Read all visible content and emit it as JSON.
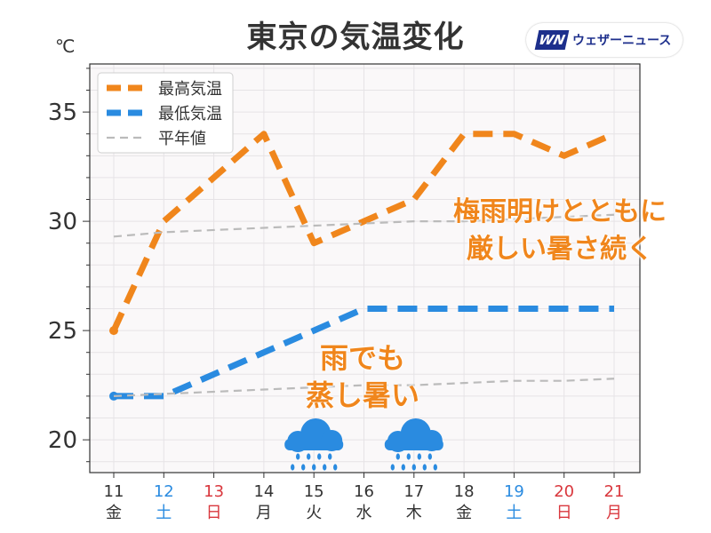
{
  "chart_data": {
    "type": "line",
    "title": "東京の気温変化",
    "y_unit": "℃",
    "x": [
      "11",
      "12",
      "13",
      "14",
      "15",
      "16",
      "17",
      "18",
      "19",
      "20",
      "21"
    ],
    "x_weekday": [
      "金",
      "土",
      "日",
      "月",
      "火",
      "水",
      "木",
      "金",
      "土",
      "日",
      "月"
    ],
    "x_colors": [
      "#333333",
      "#2a8be0",
      "#d9373d",
      "#333333",
      "#333333",
      "#333333",
      "#333333",
      "#333333",
      "#2a8be0",
      "#d9373d",
      "#d9373d"
    ],
    "ylim": [
      18.5,
      37.2
    ],
    "yticks": [
      20,
      25,
      30,
      35
    ],
    "grid": true,
    "legend_position": "top-left",
    "series": [
      {
        "name": "最高気温",
        "color": "#f0861c",
        "style": "dashed-thick",
        "values": [
          25,
          30,
          32,
          34,
          29,
          30,
          31,
          34,
          34,
          33,
          34
        ]
      },
      {
        "name": "最低気温",
        "color": "#2a8be0",
        "style": "dashed-thick",
        "values": [
          22,
          22,
          23,
          24,
          25,
          26,
          26,
          26,
          26,
          26,
          26
        ]
      },
      {
        "name": "平年値",
        "color": "#bbbbbb",
        "style": "dashed-thin",
        "values": [
          29.3,
          29.5,
          29.6,
          29.7,
          29.8,
          29.9,
          30.0,
          30.0,
          30.1,
          30.2,
          30.3
        ]
      },
      {
        "name": "",
        "color": "#bbbbbb",
        "style": "dashed-thin",
        "values": [
          22.0,
          22.1,
          22.2,
          22.3,
          22.4,
          22.5,
          22.5,
          22.6,
          22.7,
          22.7,
          22.8
        ]
      }
    ],
    "rain_days": [
      "15",
      "17"
    ],
    "annotations": [
      {
        "text": "梅雨明けとともに",
        "line": 1
      },
      {
        "text": "厳しい暑さ続く",
        "line": 2
      },
      {
        "text": "雨でも",
        "line": 1
      },
      {
        "text": "蒸し暑い",
        "line": 2
      }
    ]
  },
  "logo": {
    "mark": "WN",
    "text": "ウェザーニュース"
  }
}
